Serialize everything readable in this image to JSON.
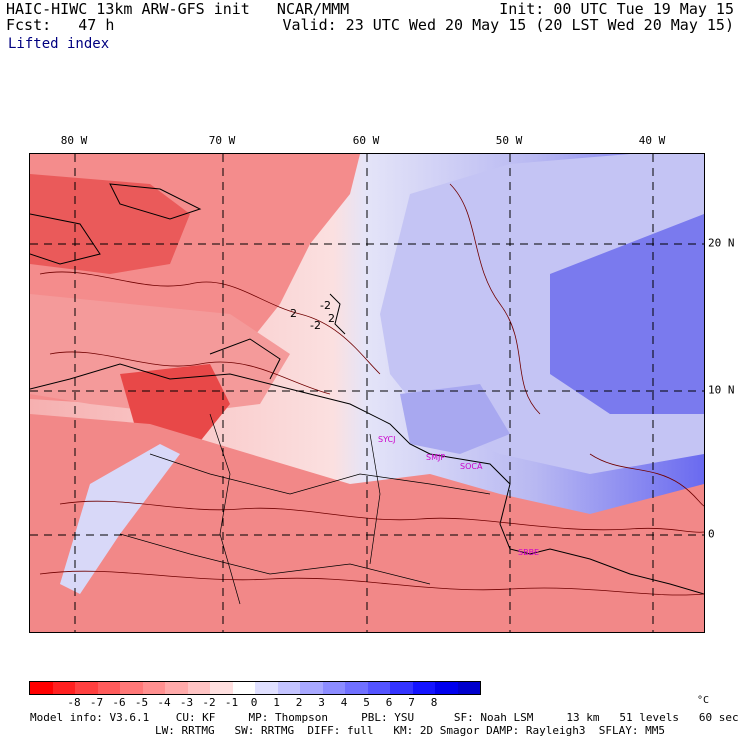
{
  "header": {
    "line1_left": "HAIC-HIWC 13km ARW-GFS init   NCAR/MMM",
    "line2_left": "Fcst:   47 h",
    "line1_right": "Init: 00 UTC Tue 19 May 15",
    "line2_right": "Valid: 23 UTC Wed 20 May 15 (20 LST Wed 20 May 15)",
    "field_name": "Lifted index"
  },
  "map": {
    "lon_labels": [
      "80 W",
      "70 W",
      "60 W",
      "50 W",
      "40 W"
    ],
    "lat_labels": [
      "20 N",
      "10 N",
      "0"
    ],
    "stations": [
      "SYCJ",
      "SMJP",
      "SOCA",
      "SBBE"
    ],
    "contour_labels": [
      "2",
      "-2",
      "2",
      "-2"
    ],
    "colors": {
      "strong_negative": "#e83030",
      "negative": "#f47a7a",
      "weak_negative": "#f8b8b8",
      "neutral": "#ffffff",
      "weak_positive": "#d4d4f4",
      "positive": "#9898ee",
      "strong_positive": "#3a3ae8",
      "coast": "#000000",
      "station": "#cc00cc"
    }
  },
  "colorbar": {
    "ticks": [
      "-8",
      "-7",
      "-6",
      "-5",
      "-4",
      "-3",
      "-2",
      "-1",
      "0",
      "1",
      "2",
      "3",
      "4",
      "5",
      "6",
      "7",
      "8"
    ],
    "unit": "°C",
    "swatches": [
      "#ff0000",
      "#ff2020",
      "#ff4040",
      "#ff5c5c",
      "#ff7878",
      "#ff9090",
      "#ffaaaa",
      "#ffc4c4",
      "#ffe0e0",
      "#ffffff",
      "#e0e0ff",
      "#c4c4ff",
      "#a8a8ff",
      "#8c8cff",
      "#7070ff",
      "#5454ff",
      "#3434ff",
      "#1414ff",
      "#0000ee",
      "#0000cc"
    ]
  },
  "footer": {
    "line1": "Model info: V3.6.1    CU: KF     MP: Thompson     PBL: YSU      SF: Noah LSM     13 km   51 levels   60 sec",
    "line2": "LW: RRTMG   SW: RRTMG  DIFF: full   KM: 2D Smagor DAMP: Rayleigh3  SFLAY: MM5"
  }
}
